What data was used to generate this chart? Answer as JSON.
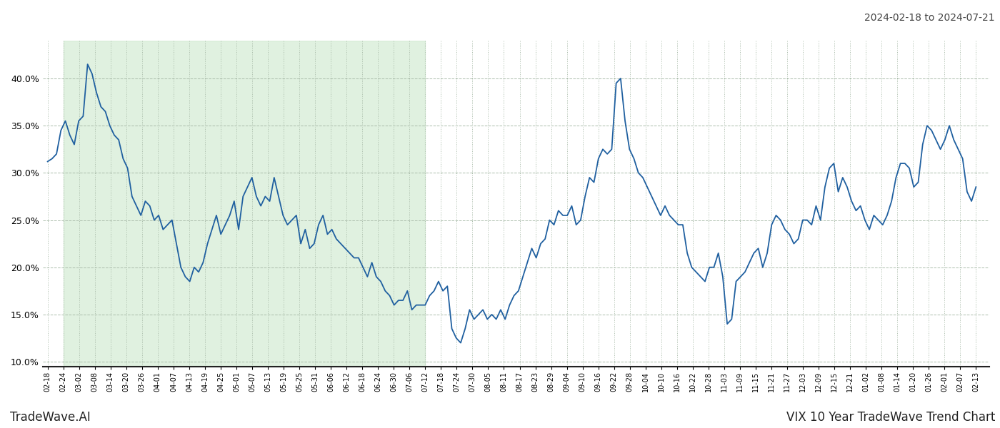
{
  "title_text": "2024-02-18 to 2024-07-21",
  "footer_left": "TradeWave.AI",
  "footer_right": "VIX 10 Year TradeWave Trend Chart",
  "line_color": "#2060a0",
  "line_width": 1.3,
  "shade_color": "#c8e6c8",
  "shade_alpha": 0.55,
  "background_color": "#ffffff",
  "grid_color": "#aabcaa",
  "ylim": [
    9.5,
    44.0
  ],
  "yticks": [
    10.0,
    15.0,
    20.0,
    25.0,
    30.0,
    35.0,
    40.0
  ],
  "x_labels": [
    "02-18",
    "02-24",
    "03-02",
    "03-08",
    "03-14",
    "03-20",
    "03-26",
    "04-01",
    "04-07",
    "04-13",
    "04-19",
    "04-25",
    "05-01",
    "05-07",
    "05-13",
    "05-19",
    "05-25",
    "05-31",
    "06-06",
    "06-12",
    "06-18",
    "06-24",
    "06-30",
    "07-06",
    "07-12",
    "07-18",
    "07-24",
    "07-30",
    "08-05",
    "08-11",
    "08-17",
    "08-23",
    "08-29",
    "09-04",
    "09-10",
    "09-16",
    "09-22",
    "09-28",
    "10-04",
    "10-10",
    "10-16",
    "10-22",
    "10-28",
    "11-03",
    "11-09",
    "11-15",
    "11-21",
    "11-27",
    "12-03",
    "12-09",
    "12-15",
    "12-21",
    "01-02",
    "01-08",
    "01-14",
    "01-20",
    "01-26",
    "02-01",
    "02-07",
    "02-13"
  ],
  "shade_start_label": "02-24",
  "shade_end_label": "07-12",
  "values": [
    31.2,
    31.5,
    32.0,
    34.5,
    35.5,
    34.0,
    33.0,
    35.5,
    36.0,
    41.5,
    40.5,
    38.5,
    37.0,
    36.5,
    35.0,
    34.0,
    33.5,
    31.5,
    30.5,
    27.5,
    26.5,
    25.5,
    27.0,
    26.5,
    25.0,
    25.5,
    24.0,
    24.5,
    25.0,
    22.5,
    20.0,
    19.0,
    18.5,
    20.0,
    19.5,
    20.5,
    22.5,
    24.0,
    25.5,
    23.5,
    24.5,
    25.5,
    27.0,
    24.0,
    27.5,
    28.5,
    29.5,
    27.5,
    26.5,
    27.5,
    27.0,
    29.5,
    27.5,
    25.5,
    24.5,
    25.0,
    25.5,
    22.5,
    24.0,
    22.0,
    22.5,
    24.5,
    25.5,
    23.5,
    24.0,
    23.0,
    22.5,
    22.0,
    21.5,
    21.0,
    21.0,
    20.0,
    19.0,
    20.5,
    19.0,
    18.5,
    17.5,
    17.0,
    16.0,
    16.5,
    16.5,
    17.5,
    15.5,
    16.0,
    16.0,
    16.0,
    17.0,
    17.5,
    18.5,
    17.5,
    18.0,
    13.5,
    12.5,
    12.0,
    13.5,
    15.5,
    14.5,
    15.0,
    15.5,
    14.5,
    15.0,
    14.5,
    15.5,
    14.5,
    16.0,
    17.0,
    17.5,
    19.0,
    20.5,
    22.0,
    21.0,
    22.5,
    23.0,
    25.0,
    24.5,
    26.0,
    25.5,
    25.5,
    26.5,
    24.5,
    25.0,
    27.5,
    29.5,
    29.0,
    31.5,
    32.5,
    32.0,
    32.5,
    39.5,
    40.0,
    35.5,
    32.5,
    31.5,
    30.0,
    29.5,
    28.5,
    27.5,
    26.5,
    25.5,
    26.5,
    25.5,
    25.0,
    24.5,
    24.5,
    21.5,
    20.0,
    19.5,
    19.0,
    18.5,
    20.0,
    20.0,
    21.5,
    19.0,
    14.0,
    14.5,
    18.5,
    19.0,
    19.5,
    20.5,
    21.5,
    22.0,
    20.0,
    21.5,
    24.5,
    25.5,
    25.0,
    24.0,
    23.5,
    22.5,
    23.0,
    25.0,
    25.0,
    24.5,
    26.5,
    25.0,
    28.5,
    30.5,
    31.0,
    28.0,
    29.5,
    28.5,
    27.0,
    26.0,
    26.5,
    25.0,
    24.0,
    25.5,
    25.0,
    24.5,
    25.5,
    27.0,
    29.5,
    31.0,
    31.0,
    30.5,
    28.5,
    29.0,
    33.0,
    35.0,
    34.5,
    33.5,
    32.5,
    33.5,
    35.0,
    33.5,
    32.5,
    31.5,
    28.0,
    27.0,
    28.5
  ]
}
